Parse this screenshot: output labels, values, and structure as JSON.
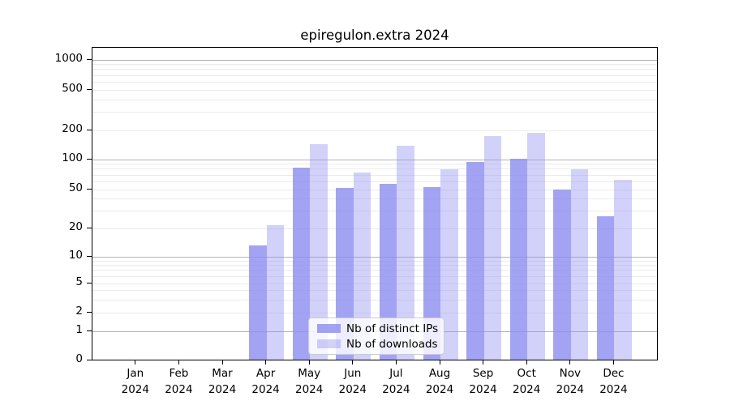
{
  "title": "epiregulon.extra 2024",
  "chart_data": {
    "type": "bar",
    "title": "epiregulon.extra 2024",
    "categories": [
      "Jan 2024",
      "Feb 2024",
      "Mar 2024",
      "Apr 2024",
      "May 2024",
      "Jun 2024",
      "Jul 2024",
      "Aug 2024",
      "Sep 2024",
      "Oct 2024",
      "Nov 2024",
      "Dec 2024"
    ],
    "x_tick_month_labels": [
      "Jan",
      "Feb",
      "Mar",
      "Apr",
      "May",
      "Jun",
      "Jul",
      "Aug",
      "Sep",
      "Oct",
      "Nov",
      "Dec"
    ],
    "x_tick_year_label": "2024",
    "series": [
      {
        "name": "Nb of distinct IPs",
        "color": "rgba(140,140,240,0.8)",
        "values": [
          0,
          0,
          0,
          13,
          81,
          51,
          56,
          52,
          93,
          100,
          49,
          26
        ]
      },
      {
        "name": "Nb of downloads",
        "color": "rgba(140,140,240,0.4)",
        "values": [
          0,
          0,
          0,
          21,
          141,
          73,
          137,
          78,
          170,
          185,
          78,
          62
        ]
      }
    ],
    "xlabel": "",
    "ylabel": "",
    "yscale": "log-like (0 then log ticks)",
    "y_ticks": [
      0,
      1,
      2,
      5,
      10,
      20,
      50,
      100,
      200,
      500,
      1000
    ],
    "ylim": [
      0,
      1300
    ],
    "grid": true,
    "legend_position": "lower center"
  },
  "colors": {
    "bar_base": "#8c8cf0",
    "grid_major": "#b3b3b3",
    "grid_minor": "#ebebeb",
    "axis": "#000000",
    "background": "#ffffff",
    "legend_border": "#cccccc"
  }
}
